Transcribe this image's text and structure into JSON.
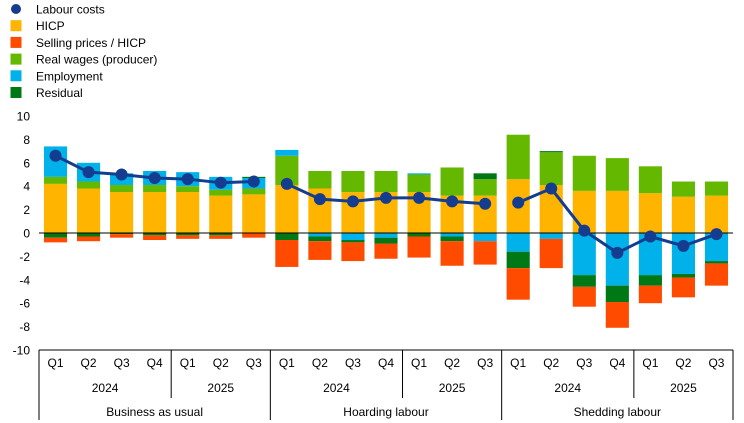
{
  "chart_data": {
    "type": "bar",
    "colors": {
      "labour_costs": "#143d8f",
      "hicp": "#ffb400",
      "selling_prices": "#ff4b00",
      "real_wages": "#65b800",
      "employment": "#00b1ea",
      "residual": "#007816"
    },
    "legend": [
      {
        "key": "labour_costs",
        "label": "Labour costs",
        "shape": "circle"
      },
      {
        "key": "hicp",
        "label": "HICP",
        "shape": "square"
      },
      {
        "key": "selling_prices",
        "label": "Selling prices / HICP",
        "shape": "square"
      },
      {
        "key": "real_wages",
        "label": "Real wages (producer)",
        "shape": "square"
      },
      {
        "key": "employment",
        "label": "Employment",
        "shape": "square"
      },
      {
        "key": "residual",
        "label": "Residual",
        "shape": "square"
      }
    ],
    "ylim": [
      -10,
      10
    ],
    "yticks": [
      -10,
      -8,
      -6,
      -4,
      -2,
      0,
      2,
      4,
      6,
      8,
      10
    ],
    "groups": [
      {
        "name": "Business as usual",
        "years": [
          {
            "label": "2024",
            "quarters": 4
          },
          {
            "label": "2025",
            "quarters": 3
          }
        ],
        "quarters": [
          "Q1",
          "Q2",
          "Q3",
          "Q4",
          "Q1",
          "Q2",
          "Q3"
        ],
        "hicp": [
          4.2,
          3.8,
          3.5,
          3.5,
          3.5,
          3.2,
          3.3
        ],
        "selling_prices": [
          -0.4,
          -0.4,
          -0.3,
          -0.4,
          -0.3,
          -0.3,
          -0.4
        ],
        "real_wages": [
          0.6,
          0.6,
          0.6,
          0.6,
          0.5,
          0.5,
          0.5
        ],
        "employment": [
          2.6,
          1.6,
          1.0,
          1.2,
          1.2,
          1.1,
          0.9
        ],
        "residual": [
          -0.4,
          -0.3,
          -0.1,
          -0.2,
          -0.2,
          -0.2,
          0.1
        ],
        "labour_costs": [
          6.6,
          5.2,
          5.0,
          4.7,
          4.6,
          4.3,
          4.4
        ]
      },
      {
        "name": "Hoarding labour",
        "years": [
          {
            "label": "2024",
            "quarters": 4
          },
          {
            "label": "2025",
            "quarters": 3
          }
        ],
        "quarters": [
          "Q1",
          "Q2",
          "Q3",
          "Q4",
          "Q1",
          "Q2",
          "Q3"
        ],
        "hicp": [
          4.1,
          3.8,
          3.5,
          3.5,
          3.5,
          3.2,
          3.2
        ],
        "selling_prices": [
          -2.3,
          -1.6,
          -1.6,
          -1.3,
          -1.8,
          -2.1,
          -2.0
        ],
        "real_wages": [
          2.5,
          1.5,
          1.8,
          1.8,
          1.5,
          2.4,
          1.4
        ],
        "employment": [
          0.5,
          -0.3,
          -0.6,
          -0.4,
          0.1,
          -0.3,
          -0.7
        ],
        "residual": [
          -0.6,
          -0.4,
          -0.2,
          -0.5,
          -0.3,
          -0.4,
          0.5
        ],
        "labour_costs": [
          4.2,
          2.9,
          2.7,
          3.0,
          3.0,
          2.7,
          2.5
        ]
      },
      {
        "name": "Shedding labour",
        "years": [
          {
            "label": "2024",
            "quarters": 4
          },
          {
            "label": "2025",
            "quarters": 3
          }
        ],
        "quarters": [
          "Q1",
          "Q2",
          "Q3",
          "Q4",
          "Q1",
          "Q2",
          "Q3"
        ],
        "hicp": [
          4.6,
          4.1,
          3.6,
          3.6,
          3.4,
          3.1,
          3.2
        ],
        "selling_prices": [
          -2.7,
          -2.5,
          -1.7,
          -2.2,
          -1.5,
          -1.7,
          -1.9
        ],
        "real_wages": [
          3.8,
          2.8,
          3.0,
          2.8,
          2.3,
          1.3,
          1.2
        ],
        "employment": [
          -1.6,
          -0.5,
          -3.6,
          -4.5,
          -3.6,
          -3.5,
          -2.4
        ],
        "residual": [
          -1.4,
          0.1,
          -1.0,
          -1.4,
          -0.9,
          -0.3,
          -0.2
        ],
        "labour_costs": [
          2.6,
          3.8,
          0.2,
          -1.7,
          -0.3,
          -1.1,
          -0.1
        ]
      }
    ]
  }
}
